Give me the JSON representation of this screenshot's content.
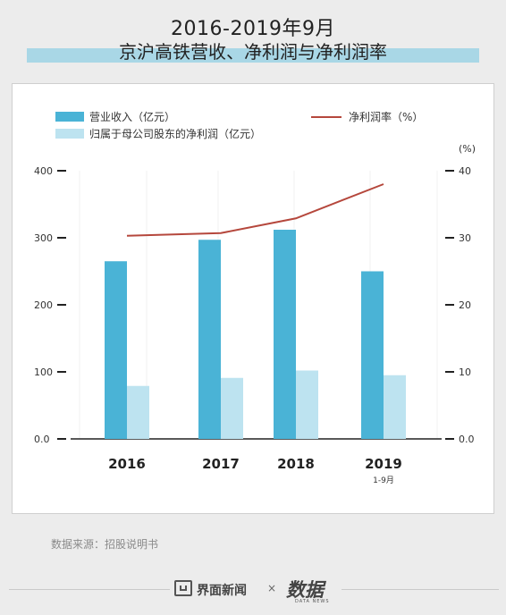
{
  "header": {
    "title_line1": "2016-2019年9月",
    "title_line2": "京沪高铁营收、净利润与净利润率"
  },
  "source": "数据来源：招股说明书",
  "footer": {
    "brand1": "界面新闻",
    "separator": "×",
    "brand2": "数据",
    "brand2_sub": "DATA NEWS"
  },
  "chart_data": {
    "type": "bar",
    "categories": [
      "2016",
      "2017",
      "2018",
      "2019"
    ],
    "category_sublabels": [
      "",
      "",
      "",
      "1-9月"
    ],
    "series": [
      {
        "name": "营业收入（亿元）",
        "type": "bar",
        "axis": "left",
        "color": "#4ab3d6",
        "values": [
          265,
          297,
          312,
          250
        ]
      },
      {
        "name": "归属于母公司股东的净利润（亿元）",
        "type": "bar",
        "axis": "left",
        "color": "#bde3f0",
        "values": [
          79,
          91,
          102,
          95
        ]
      },
      {
        "name": "净利润率（%）",
        "type": "line",
        "axis": "right",
        "color": "#b5473c",
        "values": [
          30.3,
          30.7,
          32.9,
          38.0
        ]
      }
    ],
    "y_left": {
      "ticks": [
        "0.0",
        "100",
        "200",
        "300",
        "400"
      ],
      "range": [
        0,
        400
      ]
    },
    "y_right": {
      "ticks": [
        "0.0",
        "10",
        "20",
        "30",
        "40"
      ],
      "range": [
        0,
        40
      ],
      "unit": "(%)"
    }
  }
}
